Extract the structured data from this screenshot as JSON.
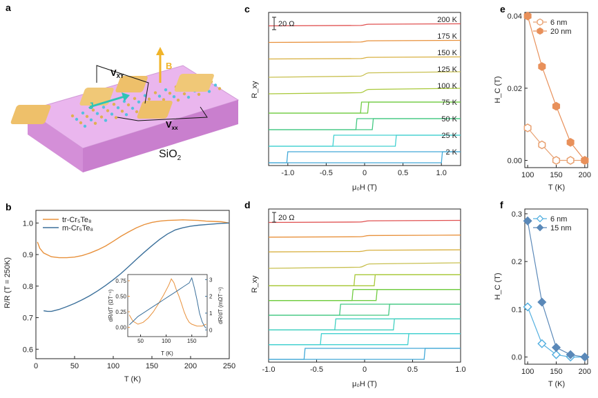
{
  "panel_labels": [
    "a",
    "b",
    "c",
    "d",
    "e",
    "f"
  ],
  "schematic": {
    "labels": {
      "vxy": "V",
      "vxy_sub": "XY",
      "vxx": "V",
      "vxx_sub": "xx",
      "b": "B",
      "j": "J",
      "substrate": "SiO",
      "substrate_sub": "2"
    },
    "colors": {
      "substrate": "#e3a9e6",
      "contact": "#eec06a",
      "atom": "#55c0e0",
      "arrow": "#2ec4b6",
      "b_arrow": "#f0b429"
    }
  },
  "chart_data": [
    {
      "id": "b",
      "type": "line",
      "xlabel": "T (K)",
      "ylabel": "R/R (T = 250K)",
      "xlim": [
        0,
        250
      ],
      "ylim": [
        0.57,
        1.04
      ],
      "xticks": [
        0,
        50,
        100,
        150,
        200,
        250
      ],
      "yticks": [
        0.6,
        0.7,
        0.8,
        0.9,
        1.0
      ],
      "ytick_labels": [
        "0.6",
        "0.7",
        "0.8",
        "0.9",
        "1.0"
      ],
      "legend": {
        "position": "top-left",
        "entries": [
          "tr-Cr₅Te₈",
          "m-Cr₅Te₈"
        ]
      },
      "series": [
        {
          "name": "tr-Cr₅Te₈",
          "color": "#e8903a",
          "x": [
            2,
            5,
            10,
            20,
            30,
            40,
            50,
            60,
            70,
            80,
            90,
            100,
            110,
            120,
            130,
            140,
            150,
            160,
            170,
            180,
            190,
            200,
            210,
            220,
            230,
            240,
            250
          ],
          "y": [
            0.94,
            0.92,
            0.905,
            0.893,
            0.89,
            0.89,
            0.892,
            0.897,
            0.905,
            0.915,
            0.927,
            0.942,
            0.958,
            0.972,
            0.985,
            0.995,
            1.002,
            1.006,
            1.008,
            1.009,
            1.01,
            1.009,
            1.008,
            1.006,
            1.005,
            1.004,
            1.0
          ]
        },
        {
          "name": "m-Cr₅Te₈",
          "color": "#3a6f9a",
          "x": [
            10,
            15,
            20,
            30,
            40,
            50,
            60,
            70,
            80,
            90,
            100,
            110,
            120,
            130,
            140,
            150,
            160,
            170,
            180,
            190,
            200,
            210,
            220,
            230,
            240,
            250
          ],
          "y": [
            0.722,
            0.72,
            0.72,
            0.726,
            0.735,
            0.745,
            0.757,
            0.77,
            0.785,
            0.802,
            0.82,
            0.84,
            0.862,
            0.885,
            0.907,
            0.928,
            0.948,
            0.965,
            0.978,
            0.985,
            0.99,
            0.993,
            0.995,
            0.997,
            0.999,
            1.0
          ]
        }
      ],
      "inset": {
        "xlabel": "T (K)",
        "ylabel_left": "dR/dT (ΩT⁻¹)",
        "ylabel_right": "dR/dT (mΩT⁻¹)",
        "xlim": [
          25,
          180
        ],
        "ylim_left": [
          -0.15,
          0.85
        ],
        "ylim_right": [
          -0.4,
          3.3
        ],
        "xticks": [
          50,
          100,
          150
        ],
        "yticks_left": [
          0.0,
          0.25,
          0.5,
          0.75
        ],
        "yticks_left_labels": [
          "0.00",
          "0.25",
          "0.50",
          "0.75"
        ],
        "yticks_right": [
          0,
          1,
          2,
          3
        ],
        "series": [
          {
            "name": "tr-Cr₅Te₈",
            "axis": "left",
            "color": "#e8903a",
            "x": [
              28,
              35,
              45,
              55,
              65,
              75,
              85,
              95,
              105,
              110,
              115,
              120,
              125,
              130,
              135,
              140,
              145,
              150,
              160,
              170,
              178
            ],
            "y": [
              0.2,
              0.1,
              0.05,
              0.08,
              0.15,
              0.25,
              0.38,
              0.52,
              0.68,
              0.78,
              0.72,
              0.6,
              0.5,
              0.38,
              0.25,
              0.15,
              0.08,
              0.05,
              0.02,
              0.02,
              0.05
            ]
          },
          {
            "name": "m-Cr₅Te₈",
            "axis": "right",
            "color": "#3a6f9a",
            "x": [
              28,
              35,
              45,
              55,
              65,
              75,
              85,
              95,
              105,
              115,
              125,
              135,
              145,
              150,
              155,
              160,
              165,
              170,
              175,
              178
            ],
            "y": [
              0.3,
              0.5,
              0.8,
              1.0,
              1.2,
              1.4,
              1.6,
              1.8,
              2.0,
              2.2,
              2.4,
              2.6,
              2.8,
              3.1,
              2.5,
              1.8,
              1.0,
              0.5,
              0.2,
              0.1
            ]
          }
        ]
      }
    },
    {
      "id": "c",
      "type": "line",
      "xlabel": "μ₀H (T)",
      "ylabel": "R_xy",
      "xlim": [
        -1.25,
        1.25
      ],
      "xticks": [
        -1.0,
        -0.5,
        0.0,
        0.5,
        1.0
      ],
      "xtick_labels": [
        "-1.0",
        "-0.5",
        "0",
        "0.5",
        "1.0"
      ],
      "scale_bar": "20 Ω",
      "series": [
        {
          "name": "200 K",
          "label": "200 K",
          "color": "#e05050",
          "Hc": 0.0
        },
        {
          "name": "175 K",
          "label": "175 K",
          "color": "#e8903a",
          "Hc": 0.0
        },
        {
          "name": "150 K",
          "label": "150 K",
          "color": "#d8b040",
          "Hc": 0.0
        },
        {
          "name": "125 K",
          "label": "125 K",
          "color": "#c8c050",
          "Hc": 0.0
        },
        {
          "name": "100 K",
          "label": "100 K",
          "color": "#a8c838",
          "Hc": 0.0
        },
        {
          "name": "75 K",
          "label": "75 K",
          "color": "#70cc40",
          "Hc": 0.04
        },
        {
          "name": "50 K",
          "label": "50 K",
          "color": "#40c880",
          "Hc": 0.1
        },
        {
          "name": "25 K",
          "label": "25 K",
          "color": "#40d0d0",
          "Hc": 0.4
        },
        {
          "name": "2 K",
          "label": "2 K",
          "color": "#40a8d8",
          "Hc": 1.0
        }
      ]
    },
    {
      "id": "d",
      "type": "line",
      "xlabel": "μ₀H (T)",
      "ylabel": "R_xy",
      "xlim": [
        -1.0,
        1.0
      ],
      "xticks": [
        -1.0,
        -0.5,
        0.0,
        0.5,
        1.0
      ],
      "xtick_labels": [
        "-1.0",
        "-0.5",
        "0",
        "0.5",
        "1.0"
      ],
      "scale_bar": "20 Ω",
      "series": [
        {
          "color": "#e05050",
          "Hc": 0.0
        },
        {
          "color": "#e8903a",
          "Hc": 0.0
        },
        {
          "color": "#d8b040",
          "Hc": 0.0
        },
        {
          "color": "#c8c050",
          "Hc": 0.0
        },
        {
          "color": "#a8c838",
          "Hc": 0.1
        },
        {
          "color": "#70cc40",
          "Hc": 0.12
        },
        {
          "color": "#40c880",
          "Hc": 0.25
        },
        {
          "color": "#40d0c0",
          "Hc": 0.3
        },
        {
          "color": "#40d0d0",
          "Hc": 0.45
        },
        {
          "color": "#40a8d8",
          "Hc": 0.62
        }
      ]
    },
    {
      "id": "e",
      "type": "scatter",
      "xlabel": "T (K)",
      "ylabel": "H_C (T)",
      "xlim": [
        95,
        205
      ],
      "ylim": [
        -0.002,
        0.041
      ],
      "xticks": [
        100,
        150,
        200
      ],
      "yticks": [
        0.0,
        0.02,
        0.04
      ],
      "ytick_labels": [
        "0.00",
        "0.02",
        "0.04"
      ],
      "legend": {
        "position": "top-right",
        "entries": [
          "6 nm",
          "20 nm"
        ]
      },
      "marker": "hexagon",
      "series": [
        {
          "name": "6 nm",
          "color": "#e8a070",
          "filled": false,
          "x": [
            100,
            125,
            150,
            175,
            200
          ],
          "y": [
            0.009,
            0.0043,
            0.0,
            0.0,
            0.0
          ]
        },
        {
          "name": "20 nm",
          "color": "#e8905a",
          "filled": true,
          "x": [
            100,
            125,
            150,
            175,
            200
          ],
          "y": [
            0.04,
            0.026,
            0.015,
            0.005,
            0.0
          ]
        }
      ]
    },
    {
      "id": "f",
      "type": "scatter",
      "xlabel": "T (K)",
      "ylabel": "H_C (T)",
      "xlim": [
        95,
        205
      ],
      "ylim": [
        -0.015,
        0.31
      ],
      "xticks": [
        100,
        150,
        200
      ],
      "yticks": [
        0.0,
        0.1,
        0.2,
        0.3
      ],
      "ytick_labels": [
        "0.0",
        "0.1",
        "0.2",
        "0.3"
      ],
      "legend": {
        "position": "top-right",
        "entries": [
          "6 nm",
          "15 nm"
        ]
      },
      "marker": "diamond",
      "series": [
        {
          "name": "6 nm",
          "color": "#55b0e0",
          "filled": false,
          "x": [
            100,
            125,
            150,
            175,
            200
          ],
          "y": [
            0.105,
            0.028,
            0.005,
            0.0,
            0.0
          ]
        },
        {
          "name": "15 nm",
          "color": "#5a88b8",
          "filled": true,
          "x": [
            100,
            125,
            150,
            175,
            200
          ],
          "y": [
            0.285,
            0.115,
            0.02,
            0.005,
            0.0
          ]
        }
      ]
    }
  ]
}
